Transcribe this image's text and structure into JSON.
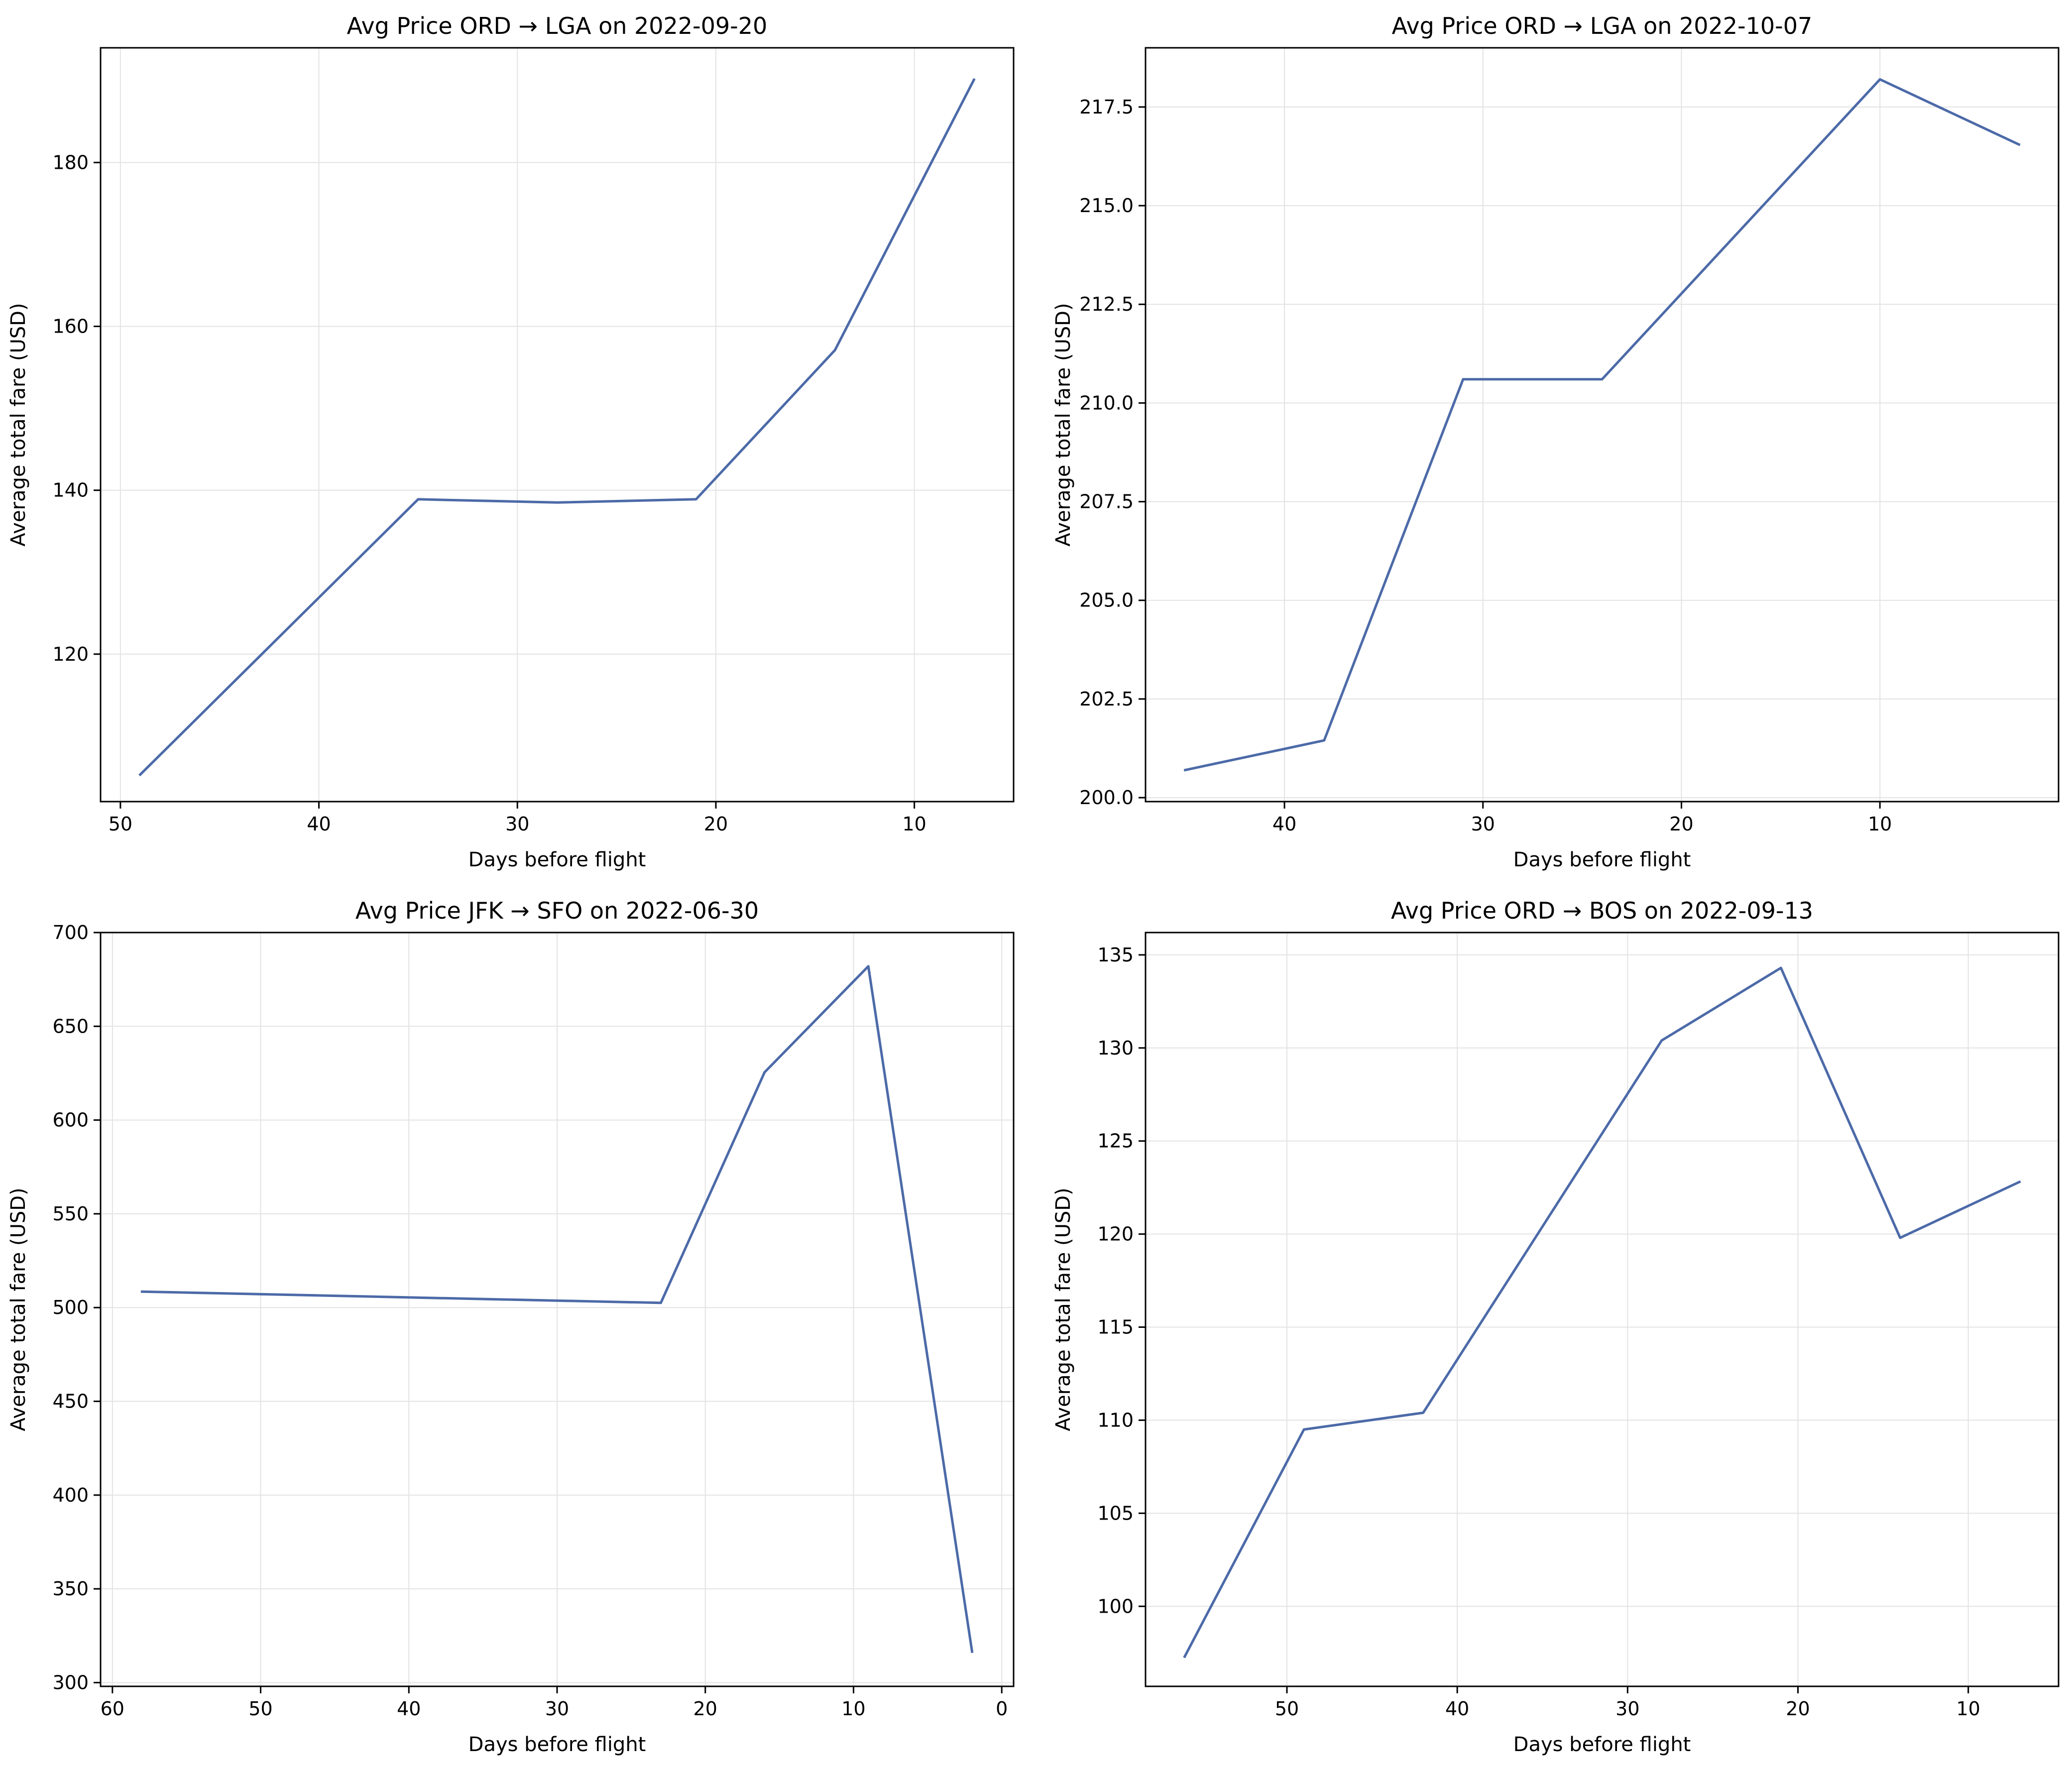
{
  "colors": {
    "line": "#4c6aa8",
    "grid": "#e3e3e3",
    "axes": "#000000",
    "background": "#ffffff"
  },
  "chart_data": [
    {
      "type": "line",
      "title": "Avg Price ORD → LGA on 2022-09-20",
      "xlabel": "Days before flight",
      "ylabel": "Average total fare (USD)",
      "x_inverted": true,
      "grid": true,
      "xlim": [
        51,
        5
      ],
      "ylim": [
        102,
        194
      ],
      "xticks": [
        50,
        40,
        30,
        20,
        10
      ],
      "yticks": [
        120,
        140,
        160,
        180
      ],
      "x": [
        49,
        35,
        28,
        21,
        14,
        7
      ],
      "y": [
        105.3,
        138.9,
        138.5,
        138.9,
        157.1,
        190.1
      ]
    },
    {
      "type": "line",
      "title": "Avg Price ORD → LGA on 2022-10-07",
      "xlabel": "Days before flight",
      "ylabel": "Average total fare (USD)",
      "x_inverted": true,
      "grid": true,
      "xlim": [
        47,
        1
      ],
      "ylim": [
        199.9,
        219
      ],
      "xticks": [
        40,
        30,
        20,
        10
      ],
      "yticks": [
        200.0,
        202.5,
        205.0,
        207.5,
        210.0,
        212.5,
        215.0,
        217.5
      ],
      "ytick_labels": [
        "200.0",
        "202.5",
        "205.0",
        "207.5",
        "210.0",
        "212.5",
        "215.0",
        "217.5"
      ],
      "x": [
        45,
        38,
        31,
        24,
        10,
        3
      ],
      "y": [
        200.7,
        201.45,
        210.6,
        210.6,
        218.2,
        216.55
      ]
    },
    {
      "type": "line",
      "title": "Avg Price JFK → SFO on 2022-06-30",
      "xlabel": "Days before flight",
      "ylabel": "Average total fare (USD)",
      "x_inverted": true,
      "grid": true,
      "xlim": [
        60.8,
        -0.8
      ],
      "ylim": [
        298,
        700
      ],
      "xticks": [
        60,
        50,
        40,
        30,
        20,
        10,
        0
      ],
      "yticks": [
        300,
        350,
        400,
        450,
        500,
        550,
        600,
        650,
        700
      ],
      "x": [
        58,
        23,
        16,
        9,
        2
      ],
      "y": [
        508.5,
        502.5,
        625.5,
        682,
        316.5
      ]
    },
    {
      "type": "line",
      "title": "Avg Price ORD → BOS on 2022-09-13",
      "xlabel": "Days before flight",
      "ylabel": "Average total fare (USD)",
      "x_inverted": true,
      "grid": true,
      "xlim": [
        58.3,
        4.7
      ],
      "ylim": [
        95.7,
        136.2
      ],
      "xticks": [
        50,
        40,
        30,
        20,
        10
      ],
      "yticks": [
        100,
        105,
        110,
        115,
        120,
        125,
        130,
        135
      ],
      "x": [
        56,
        49,
        42,
        28,
        21,
        14,
        7
      ],
      "y": [
        97.3,
        109.5,
        110.4,
        130.4,
        134.3,
        119.8,
        122.8
      ]
    }
  ]
}
